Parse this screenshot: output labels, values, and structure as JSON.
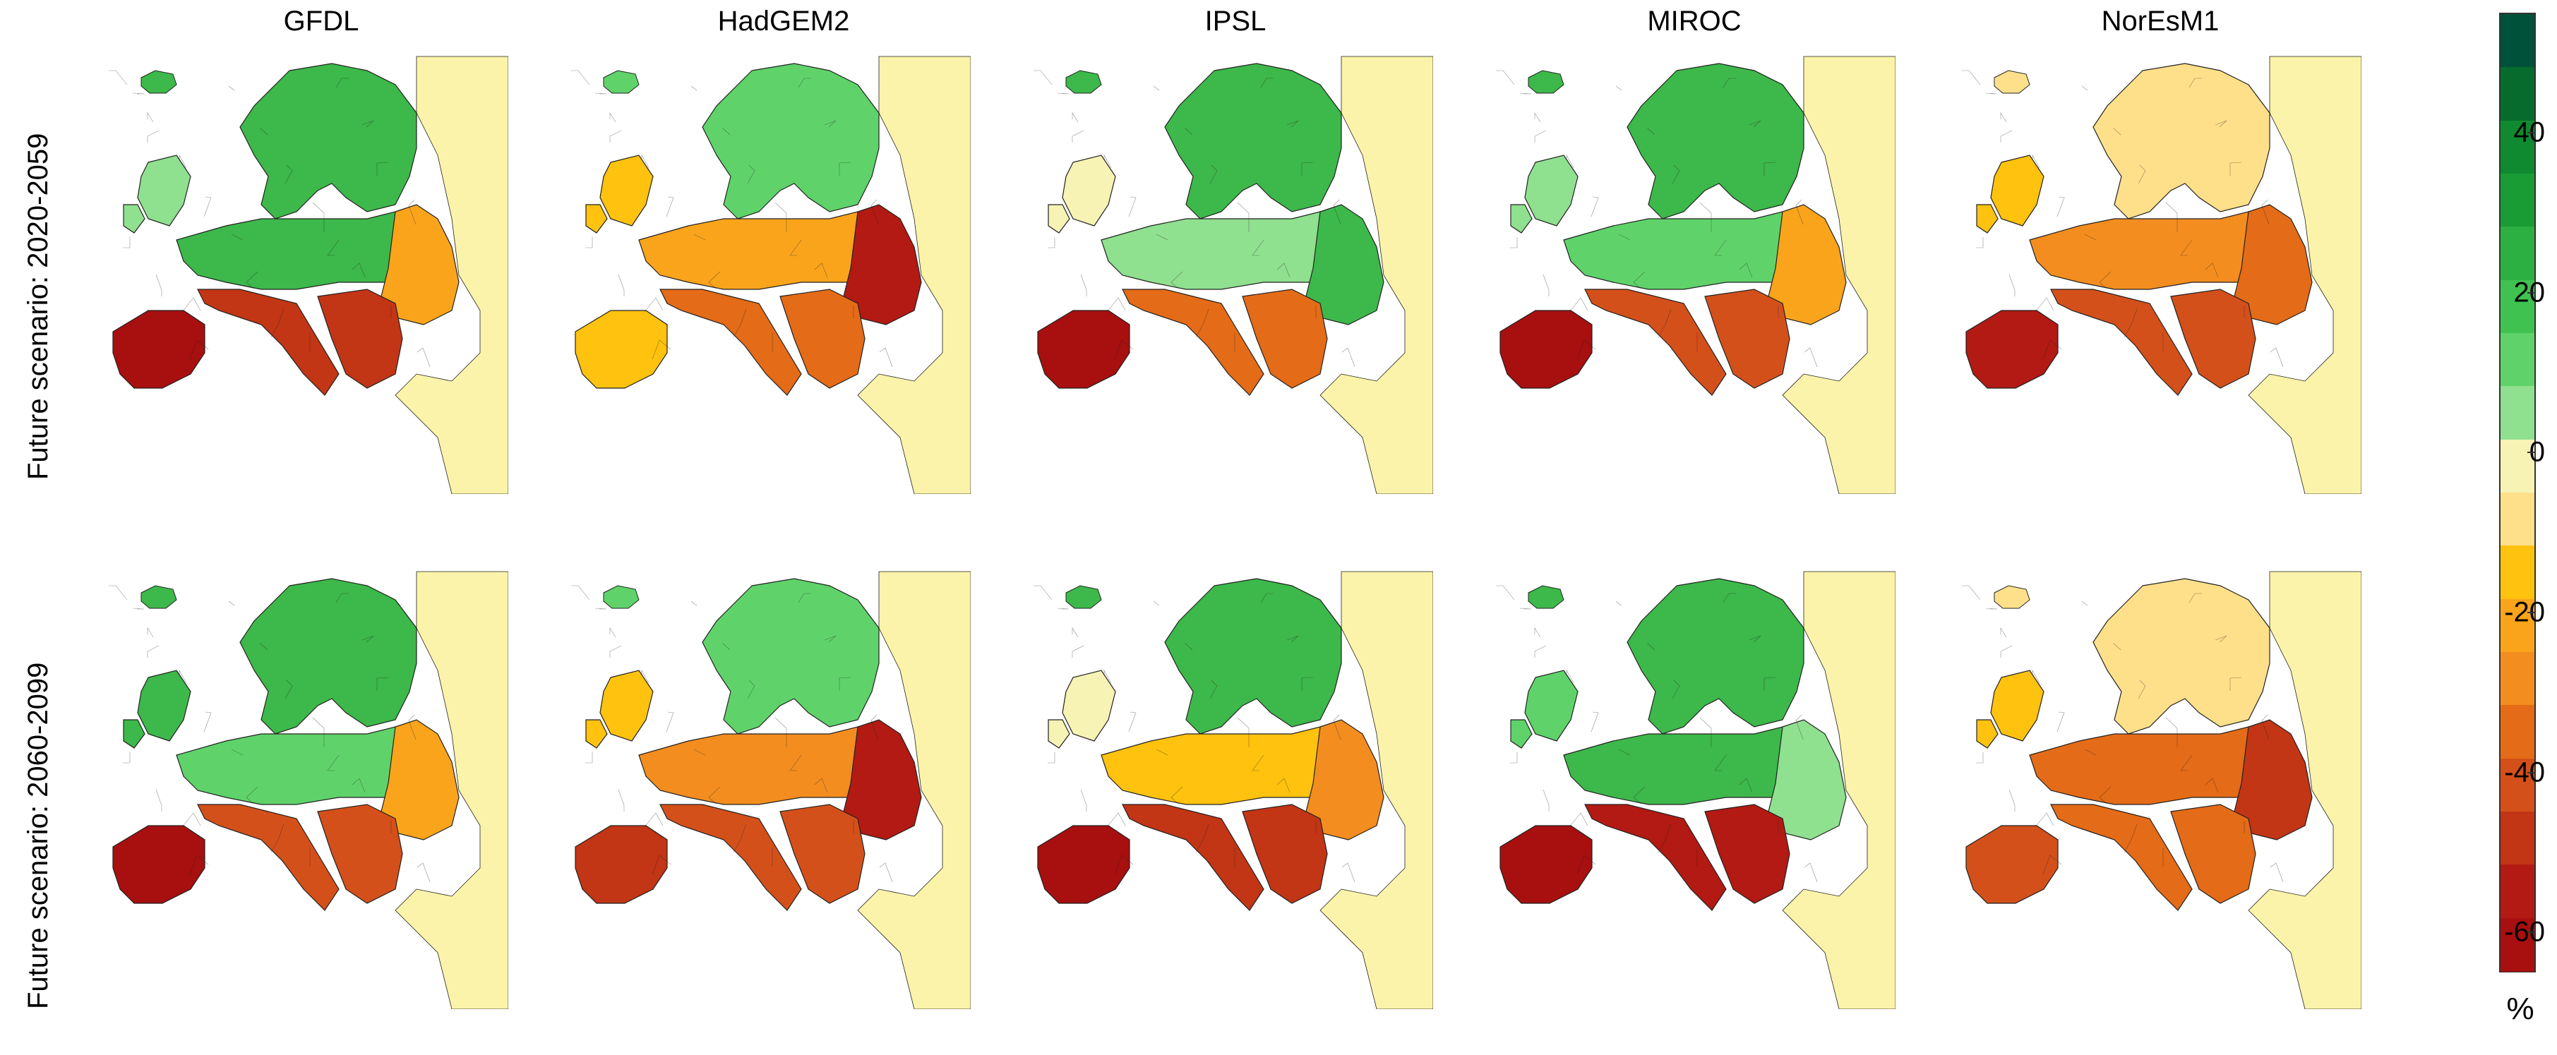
{
  "models": [
    "GFDL",
    "HadGEM2",
    "IPSL",
    "MIROC",
    "NorEsM1"
  ],
  "scenarios": [
    "Future scenario: 2020-2059",
    "Future scenario: 2060-2099"
  ],
  "legend": {
    "unit": "%",
    "ticks": [
      "40",
      "20",
      "0",
      "-20",
      "-40",
      "-60"
    ],
    "tick_values": [
      40,
      20,
      0,
      -20,
      -40,
      -60
    ],
    "range": [
      -65,
      55
    ],
    "colors_top_to_bottom": [
      "#00513a",
      "#066b2c",
      "#0f8a30",
      "#1a9c35",
      "#2cb042",
      "#3fc24f",
      "#5fd36a",
      "#8fe08f",
      "#f7f3b5",
      "#ffe08a",
      "#ffc20e",
      "#f9a41b",
      "#f38d1f",
      "#e46b17",
      "#d4501a",
      "#c23515",
      "#b21a13",
      "#a80f0f"
    ]
  },
  "map_panels": [
    {
      "scenario": "Future scenario: 2020-2059",
      "model": "GFDL",
      "palette": {
        "north": "#3db84a",
        "central": "#3db84a",
        "west": "#8fe08f",
        "south": "#c23515",
        "iberia": "#a80f0f",
        "east": "#f9a41b"
      }
    },
    {
      "scenario": "Future scenario: 2020-2059",
      "model": "HadGEM2",
      "palette": {
        "north": "#5fd36a",
        "central": "#f9a41b",
        "west": "#ffc20e",
        "south": "#e46b17",
        "iberia": "#ffc20e",
        "east": "#b21a13"
      }
    },
    {
      "scenario": "Future scenario: 2020-2059",
      "model": "IPSL",
      "palette": {
        "north": "#3db84a",
        "central": "#8fe08f",
        "west": "#f7f3b5",
        "south": "#e46b17",
        "iberia": "#a80f0f",
        "east": "#3db84a"
      }
    },
    {
      "scenario": "Future scenario: 2020-2059",
      "model": "MIROC",
      "palette": {
        "north": "#3db84a",
        "central": "#5fd36a",
        "west": "#8fe08f",
        "south": "#d4501a",
        "iberia": "#a80f0f",
        "east": "#f9a41b"
      }
    },
    {
      "scenario": "Future scenario: 2020-2059",
      "model": "NorEsM1",
      "palette": {
        "north": "#ffe08a",
        "central": "#f38d1f",
        "west": "#ffc20e",
        "south": "#d4501a",
        "iberia": "#b21a13",
        "east": "#e46b17"
      }
    },
    {
      "scenario": "Future scenario: 2060-2099",
      "model": "GFDL",
      "palette": {
        "north": "#3db84a",
        "central": "#5fd36a",
        "west": "#3db84a",
        "south": "#d4501a",
        "iberia": "#a80f0f",
        "east": "#f9a41b"
      }
    },
    {
      "scenario": "Future scenario: 2060-2099",
      "model": "HadGEM2",
      "palette": {
        "north": "#5fd36a",
        "central": "#f38d1f",
        "west": "#ffc20e",
        "south": "#d4501a",
        "iberia": "#c23515",
        "east": "#b21a13"
      }
    },
    {
      "scenario": "Future scenario: 2060-2099",
      "model": "IPSL",
      "palette": {
        "north": "#3db84a",
        "central": "#ffc20e",
        "west": "#f7f3b5",
        "south": "#c23515",
        "iberia": "#a80f0f",
        "east": "#f38d1f"
      }
    },
    {
      "scenario": "Future scenario: 2060-2099",
      "model": "MIROC",
      "palette": {
        "north": "#3db84a",
        "central": "#3db84a",
        "west": "#5fd36a",
        "south": "#b21a13",
        "iberia": "#a80f0f",
        "east": "#8fe08f"
      }
    },
    {
      "scenario": "Future scenario: 2060-2099",
      "model": "NorEsM1",
      "palette": {
        "north": "#ffe08a",
        "central": "#e46b17",
        "west": "#ffc20e",
        "south": "#e46b17",
        "iberia": "#d4501a",
        "east": "#c23515"
      }
    }
  ],
  "colors": {
    "outside_land": "#fbf3a9",
    "sea": "#ffffff",
    "border": "#222222"
  }
}
